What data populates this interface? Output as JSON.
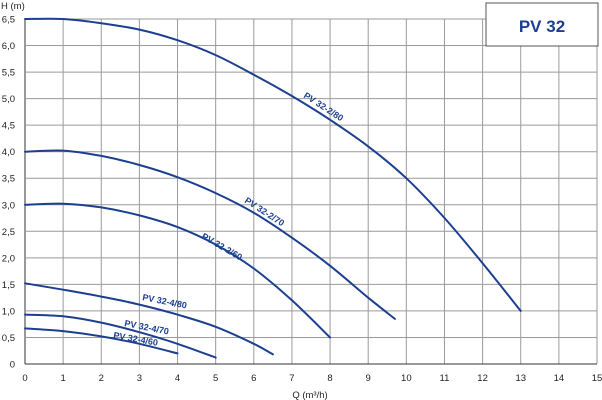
{
  "chart_data": {
    "type": "line",
    "title": "PV 32",
    "xlabel": "Q (m³/h)",
    "ylabel": "H (m)",
    "xlim": [
      0,
      15
    ],
    "ylim": [
      0,
      6.5
    ],
    "x_ticks": [
      "0",
      "1",
      "2",
      "3",
      "4",
      "5",
      "6",
      "7",
      "8",
      "9",
      "10",
      "11",
      "12",
      "13",
      "14",
      "15"
    ],
    "y_ticks": [
      "0",
      "0,5",
      "1,0",
      "1,5",
      "2,0",
      "2,5",
      "3,0",
      "3,5",
      "4,0",
      "4,5",
      "5,0",
      "5,5",
      "6,0",
      "6,5"
    ],
    "grid": true,
    "series": [
      {
        "name": "PV 32-2/80",
        "x": [
          0,
          1,
          2,
          3,
          4,
          5,
          6,
          7,
          8,
          9,
          10,
          11,
          12,
          13
        ],
        "y": [
          6.5,
          6.5,
          6.42,
          6.3,
          6.1,
          5.82,
          5.45,
          5.05,
          4.6,
          4.1,
          3.5,
          2.75,
          1.9,
          1.0
        ]
      },
      {
        "name": "PV 32-2/70",
        "x": [
          0,
          1,
          2,
          3,
          4,
          5,
          6,
          7,
          8,
          9,
          9.7
        ],
        "y": [
          4.0,
          4.02,
          3.92,
          3.75,
          3.52,
          3.22,
          2.85,
          2.38,
          1.85,
          1.25,
          0.85
        ]
      },
      {
        "name": "PV 32-2/60",
        "x": [
          0,
          1,
          2,
          3,
          4,
          5,
          6,
          7,
          8
        ],
        "y": [
          3.0,
          3.02,
          2.95,
          2.8,
          2.58,
          2.25,
          1.8,
          1.2,
          0.5
        ]
      },
      {
        "name": "PV 32-4/80",
        "x": [
          0,
          1,
          2,
          3,
          4,
          5,
          6,
          6.5
        ],
        "y": [
          1.52,
          1.4,
          1.27,
          1.12,
          0.93,
          0.7,
          0.38,
          0.18
        ]
      },
      {
        "name": "PV 32-4/70",
        "x": [
          0,
          1,
          2,
          3,
          4,
          5
        ],
        "y": [
          0.93,
          0.9,
          0.78,
          0.6,
          0.38,
          0.12
        ]
      },
      {
        "name": "PV 32-4/60",
        "x": [
          0,
          1,
          2,
          3,
          4
        ],
        "y": [
          0.67,
          0.62,
          0.52,
          0.38,
          0.2
        ]
      }
    ]
  }
}
